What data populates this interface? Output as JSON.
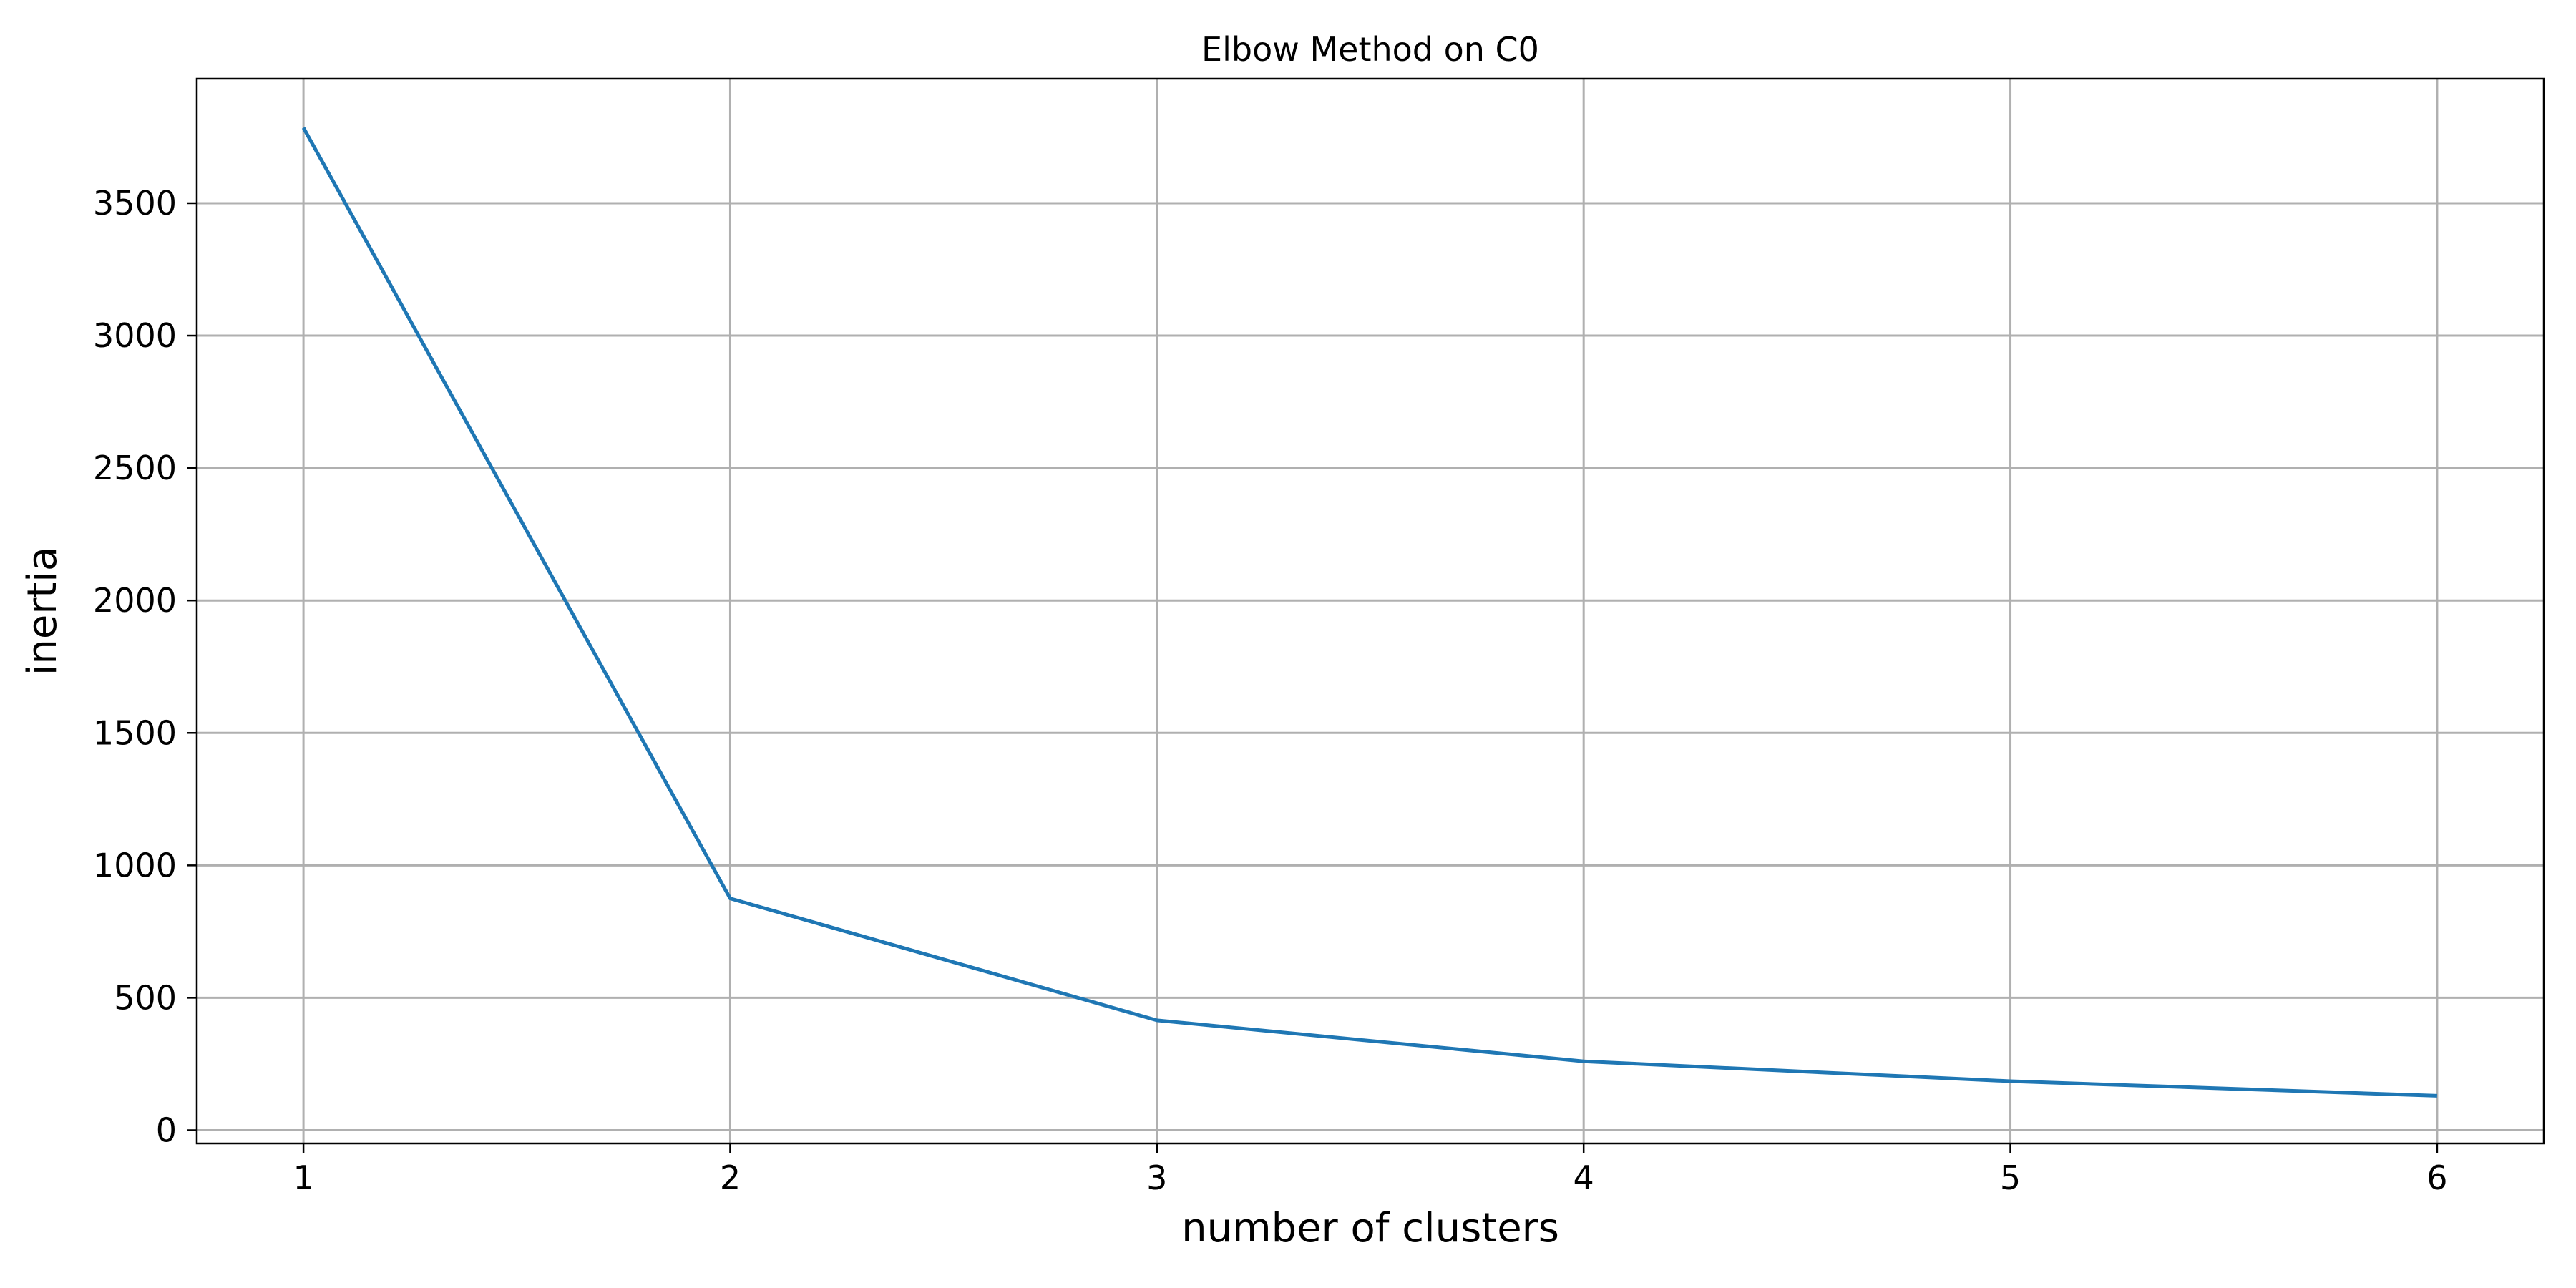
{
  "chart_data": {
    "type": "line",
    "title": "Elbow Method on C0",
    "xlabel": "number of clusters",
    "ylabel": "inertia",
    "x": [
      1,
      2,
      3,
      4,
      5,
      6
    ],
    "xlim": [
      0.75,
      6.25
    ],
    "ylim": [
      -50,
      3970
    ],
    "xticks": [
      1,
      2,
      3,
      4,
      5,
      6
    ],
    "yticks": [
      0,
      500,
      1000,
      1500,
      2000,
      2500,
      3000,
      3500
    ],
    "grid": true,
    "series": [
      {
        "values": [
          3785,
          875,
          415,
          260,
          185,
          130
        ],
        "color": "#1f77b4"
      }
    ]
  }
}
